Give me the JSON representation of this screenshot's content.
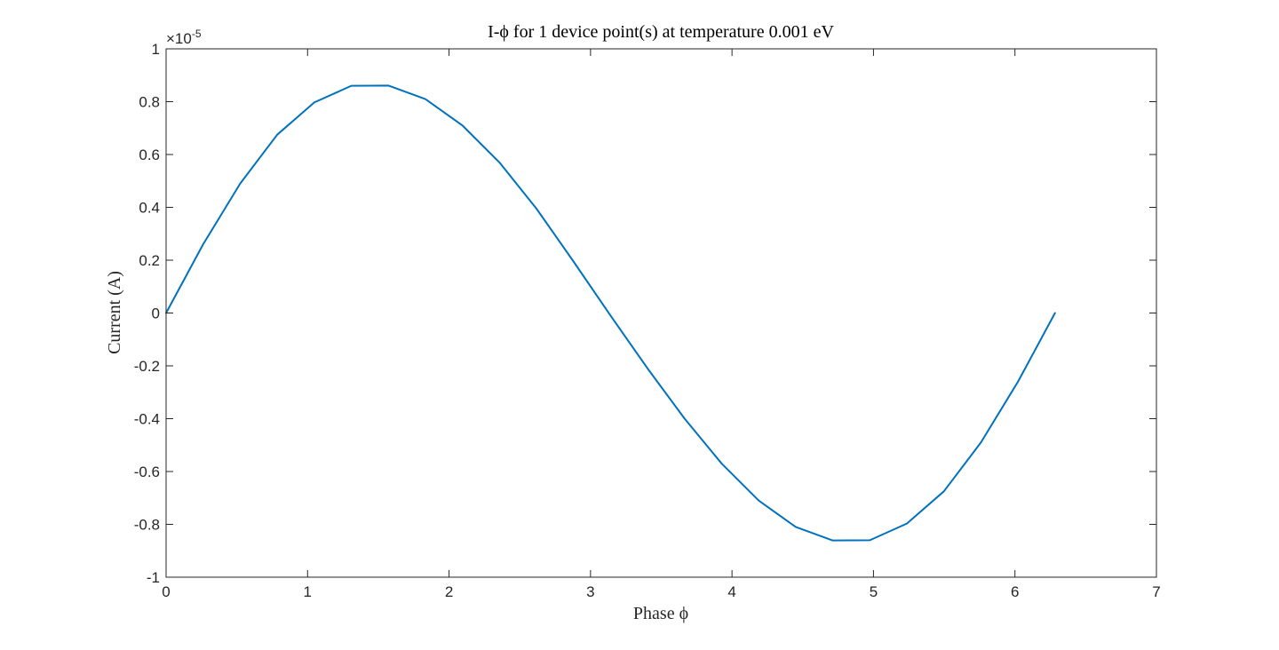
{
  "chart_data": {
    "type": "line",
    "title": "I-ϕ for 1 device point(s) at temperature 0.001 eV",
    "xlabel": "Phase ϕ",
    "ylabel": "Current (A)",
    "xlim": [
      0,
      7
    ],
    "ylim": [
      -1e-05,
      1e-05
    ],
    "y_exponent_label": {
      "base": "×10",
      "exp": "-5"
    },
    "x_ticks": [
      0,
      1,
      2,
      3,
      4,
      5,
      6,
      7
    ],
    "x_tick_labels": [
      "0",
      "1",
      "2",
      "3",
      "4",
      "5",
      "6",
      "7"
    ],
    "y_ticks": [
      -1,
      -0.8,
      -0.6,
      -0.4,
      -0.2,
      0,
      0.2,
      0.4,
      0.6,
      0.8,
      1
    ],
    "y_tick_labels": [
      "-1",
      "-0.8",
      "-0.6",
      "-0.4",
      "-0.2",
      "0",
      "0.2",
      "0.4",
      "0.6",
      "0.8",
      "1"
    ],
    "grid": false,
    "series": [
      {
        "color": "#0072BD",
        "x": [
          0,
          0.2618,
          0.5236,
          0.7854,
          1.0472,
          1.309,
          1.5708,
          1.8326,
          2.0944,
          2.3562,
          2.618,
          2.8798,
          3.1416,
          3.4034,
          3.6652,
          3.927,
          4.1888,
          4.4506,
          4.7124,
          4.9742,
          5.236,
          5.4978,
          5.7596,
          6.0214,
          6.2832
        ],
        "y": [
          0,
          2.6e-06,
          4.9e-06,
          6.75e-06,
          7.97e-06,
          8.6e-06,
          8.61e-06,
          8.1e-06,
          7.1e-06,
          5.7e-06,
          3.95e-06,
          1.95e-06,
          -1e-07,
          -2.1e-06,
          -4e-06,
          -5.7e-06,
          -7.1e-06,
          -8.1e-06,
          -8.61e-06,
          -8.6e-06,
          -7.97e-06,
          -6.75e-06,
          -4.9e-06,
          -2.6e-06,
          0
        ]
      }
    ]
  }
}
